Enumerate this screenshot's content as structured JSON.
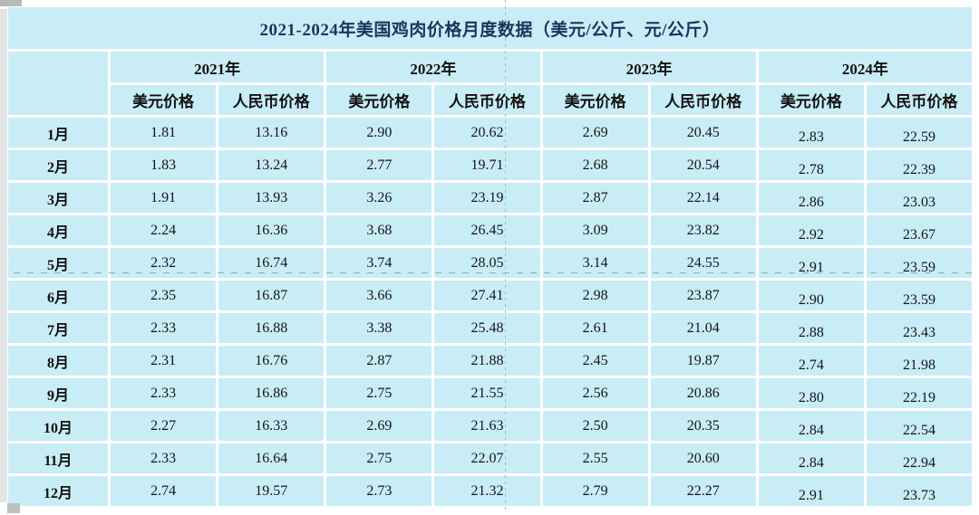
{
  "page": {
    "title": "2021-2024年美国鸡肉价格月度数据（美元/公斤、元/公斤）"
  },
  "header": {
    "years": [
      "2021年",
      "2022年",
      "2023年",
      "2024年"
    ],
    "sub_columns": [
      "美元价格",
      "人民币价格",
      "美元价格",
      "人民币价格",
      "美元价格",
      "人民币价格",
      "美元价格",
      "人民币价格"
    ]
  },
  "table": {
    "rows": [
      {
        "month": "1月",
        "values": [
          "1.81",
          "13.16",
          "2.90",
          "20.62",
          "2.69",
          "20.45",
          "2.83",
          "22.59"
        ]
      },
      {
        "month": "2月",
        "values": [
          "1.83",
          "13.24",
          "2.77",
          "19.71",
          "2.68",
          "20.54",
          "2.78",
          "22.39"
        ]
      },
      {
        "month": "3月",
        "values": [
          "1.91",
          "13.93",
          "3.26",
          "23.19",
          "2.87",
          "22.14",
          "2.86",
          "23.03"
        ]
      },
      {
        "month": "4月",
        "values": [
          "2.24",
          "16.36",
          "3.68",
          "26.45",
          "3.09",
          "23.82",
          "2.92",
          "23.67"
        ]
      },
      {
        "month": "5月",
        "values": [
          "2.32",
          "16.74",
          "3.74",
          "28.05",
          "3.14",
          "24.55",
          "2.91",
          "23.59"
        ]
      },
      {
        "month": "6月",
        "values": [
          "2.35",
          "16.87",
          "3.66",
          "27.41",
          "2.98",
          "23.87",
          "2.90",
          "23.59"
        ]
      },
      {
        "month": "7月",
        "values": [
          "2.33",
          "16.88",
          "3.38",
          "25.48",
          "2.61",
          "21.04",
          "2.88",
          "23.43"
        ]
      },
      {
        "month": "8月",
        "values": [
          "2.31",
          "16.76",
          "2.87",
          "21.88",
          "2.45",
          "19.87",
          "2.74",
          "21.98"
        ]
      },
      {
        "month": "9月",
        "values": [
          "2.33",
          "16.86",
          "2.75",
          "21.55",
          "2.56",
          "20.86",
          "2.80",
          "22.19"
        ]
      },
      {
        "month": "10月",
        "values": [
          "2.27",
          "16.33",
          "2.69",
          "21.63",
          "2.50",
          "20.35",
          "2.84",
          "22.54"
        ]
      },
      {
        "month": "11月",
        "values": [
          "2.33",
          "16.64",
          "2.75",
          "22.07",
          "2.55",
          "20.60",
          "2.84",
          "22.94"
        ]
      },
      {
        "month": "12月",
        "values": [
          "2.74",
          "19.57",
          "2.73",
          "21.32",
          "2.79",
          "22.27",
          "2.91",
          "23.73"
        ]
      }
    ]
  },
  "colors": {
    "cell_background": "#c9edf6",
    "title_text": "#17365d",
    "grid_line": "#ffffff",
    "page_break_line": "#9a9a9a"
  }
}
